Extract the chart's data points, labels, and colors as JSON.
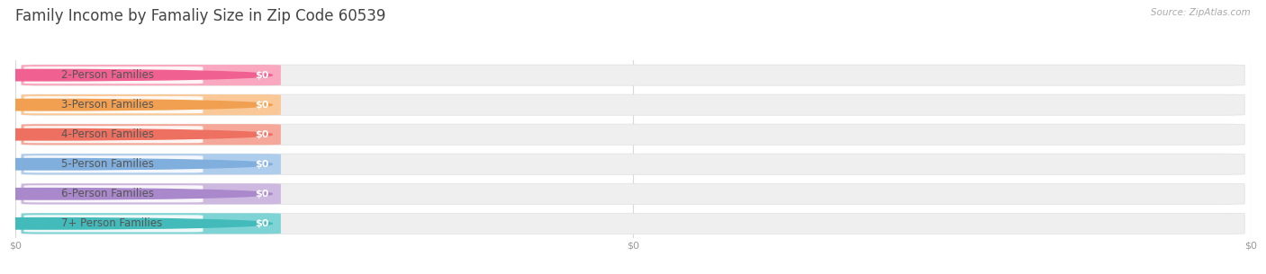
{
  "title": "Family Income by Famaliy Size in Zip Code 60539",
  "source": "Source: ZipAtlas.com",
  "categories": [
    "2-Person Families",
    "3-Person Families",
    "4-Person Families",
    "5-Person Families",
    "6-Person Families",
    "7+ Person Families"
  ],
  "values": [
    0,
    0,
    0,
    0,
    0,
    0
  ],
  "bar_colors": [
    "#F9A8BF",
    "#FAC897",
    "#F5A89A",
    "#AECCEC",
    "#CDB8DF",
    "#7ED4D4"
  ],
  "dot_colors": [
    "#F06090",
    "#F0A050",
    "#EE7060",
    "#80AEDD",
    "#AA88CC",
    "#44BBBB"
  ],
  "bg_color": "#ffffff",
  "bar_bg_color": "#efefef",
  "bar_bg_border": "#e0e0e0",
  "tick_label_color": "#999999",
  "grid_color": "#d8d8d8",
  "title_color": "#444444",
  "label_color": "#555555",
  "value_color": "#ffffff",
  "source_color": "#aaaaaa",
  "title_fontsize": 12,
  "label_fontsize": 8.5,
  "value_fontsize": 8,
  "source_fontsize": 7.5,
  "tick_fontsize": 8
}
